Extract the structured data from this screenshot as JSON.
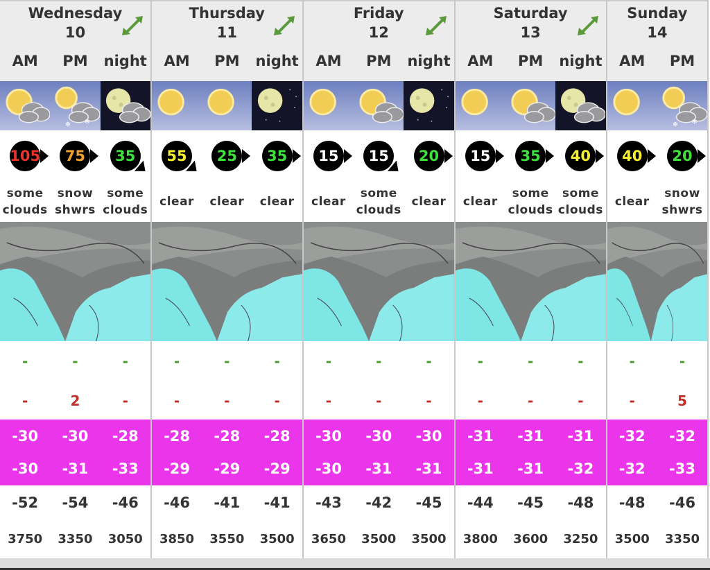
{
  "colors": {
    "temp_band": "#ea35ea",
    "snow": "#4a9a2a",
    "rain": "#c0302a",
    "expand": "#5a9a3a"
  },
  "days": [
    {
      "name": "Wednesday",
      "date": "10",
      "expand_icon": "expand-arrows-icon",
      "periods": [
        {
          "label": "AM",
          "icon": "sun-cloud",
          "wind": "105",
          "wind_color": "#e8342a",
          "wind_dir": "right",
          "desc1": "some",
          "desc2": "clouds",
          "snow": "-",
          "rain": "-",
          "tmax": "-30",
          "tmin": "-30",
          "chill": "-52",
          "frz": "3750"
        },
        {
          "label": "PM",
          "icon": "sun-cloud-snow",
          "wind": "75",
          "wind_color": "#f0a030",
          "wind_dir": "right",
          "desc1": "snow",
          "desc2": "shwrs",
          "snow": "-",
          "rain": "2",
          "tmax": "-30",
          "tmin": "-31",
          "chill": "-54",
          "frz": "3350"
        },
        {
          "label": "night",
          "icon": "moon-cloud",
          "wind": "35",
          "wind_color": "#3ee03e",
          "wind_dir": "down-right",
          "desc1": "some",
          "desc2": "clouds",
          "snow": "-",
          "rain": "-",
          "tmax": "-28",
          "tmin": "-33",
          "chill": "-46",
          "frz": "3050"
        }
      ]
    },
    {
      "name": "Thursday",
      "date": "11",
      "expand_icon": "expand-arrows-icon",
      "periods": [
        {
          "label": "AM",
          "icon": "sun",
          "wind": "55",
          "wind_color": "#f5f030",
          "wind_dir": "down-right",
          "desc1": "clear",
          "desc2": "",
          "snow": "-",
          "rain": "-",
          "tmax": "-28",
          "tmin": "-29",
          "chill": "-46",
          "frz": "3850"
        },
        {
          "label": "PM",
          "icon": "sun",
          "wind": "25",
          "wind_color": "#3ee03e",
          "wind_dir": "right",
          "desc1": "clear",
          "desc2": "",
          "snow": "-",
          "rain": "-",
          "tmax": "-28",
          "tmin": "-29",
          "chill": "-41",
          "frz": "3550"
        },
        {
          "label": "night",
          "icon": "moon",
          "wind": "35",
          "wind_color": "#3ee03e",
          "wind_dir": "right",
          "desc1": "clear",
          "desc2": "",
          "snow": "-",
          "rain": "-",
          "tmax": "-28",
          "tmin": "-29",
          "chill": "-41",
          "frz": "3500"
        }
      ]
    },
    {
      "name": "Friday",
      "date": "12",
      "expand_icon": "expand-arrows-icon",
      "periods": [
        {
          "label": "AM",
          "icon": "sun",
          "wind": "15",
          "wind_color": "#ffffff",
          "wind_dir": "right",
          "desc1": "clear",
          "desc2": "",
          "snow": "-",
          "rain": "-",
          "tmax": "-30",
          "tmin": "-30",
          "chill": "-43",
          "frz": "3650"
        },
        {
          "label": "PM",
          "icon": "sun-cloud",
          "wind": "15",
          "wind_color": "#ffffff",
          "wind_dir": "down-right",
          "desc1": "some",
          "desc2": "clouds",
          "snow": "-",
          "rain": "-",
          "tmax": "-30",
          "tmin": "-31",
          "chill": "-42",
          "frz": "3500"
        },
        {
          "label": "night",
          "icon": "moon",
          "wind": "20",
          "wind_color": "#3ee03e",
          "wind_dir": "right",
          "desc1": "clear",
          "desc2": "",
          "snow": "-",
          "rain": "-",
          "tmax": "-30",
          "tmin": "-31",
          "chill": "-45",
          "frz": "3500"
        }
      ]
    },
    {
      "name": "Saturday",
      "date": "13",
      "expand_icon": "expand-arrows-icon",
      "periods": [
        {
          "label": "AM",
          "icon": "sun",
          "wind": "15",
          "wind_color": "#ffffff",
          "wind_dir": "right",
          "desc1": "clear",
          "desc2": "",
          "snow": "-",
          "rain": "-",
          "tmax": "-31",
          "tmin": "-31",
          "chill": "-44",
          "frz": "3800"
        },
        {
          "label": "PM",
          "icon": "sun-cloud",
          "wind": "35",
          "wind_color": "#3ee03e",
          "wind_dir": "right",
          "desc1": "some",
          "desc2": "clouds",
          "snow": "-",
          "rain": "-",
          "tmax": "-31",
          "tmin": "-31",
          "chill": "-45",
          "frz": "3600"
        },
        {
          "label": "night",
          "icon": "moon-cloud",
          "wind": "40",
          "wind_color": "#f5f030",
          "wind_dir": "right",
          "desc1": "some",
          "desc2": "clouds",
          "snow": "-",
          "rain": "-",
          "tmax": "-31",
          "tmin": "-32",
          "chill": "-48",
          "frz": "3250"
        }
      ]
    },
    {
      "name": "Sunday",
      "date": "14",
      "periods": [
        {
          "label": "AM",
          "icon": "sun",
          "wind": "40",
          "wind_color": "#f5f030",
          "wind_dir": "right",
          "desc1": "clear",
          "desc2": "",
          "snow": "-",
          "rain": "-",
          "tmax": "-32",
          "tmin": "-32",
          "chill": "-48",
          "frz": "3500"
        },
        {
          "label": "PM",
          "icon": "sun-cloud-snow",
          "wind": "20",
          "wind_color": "#3ee03e",
          "wind_dir": "right",
          "desc1": "snow",
          "desc2": "shwrs",
          "snow": "-",
          "rain": "5",
          "tmax": "-32",
          "tmin": "-33",
          "chill": "-46",
          "frz": "3350"
        }
      ]
    }
  ]
}
